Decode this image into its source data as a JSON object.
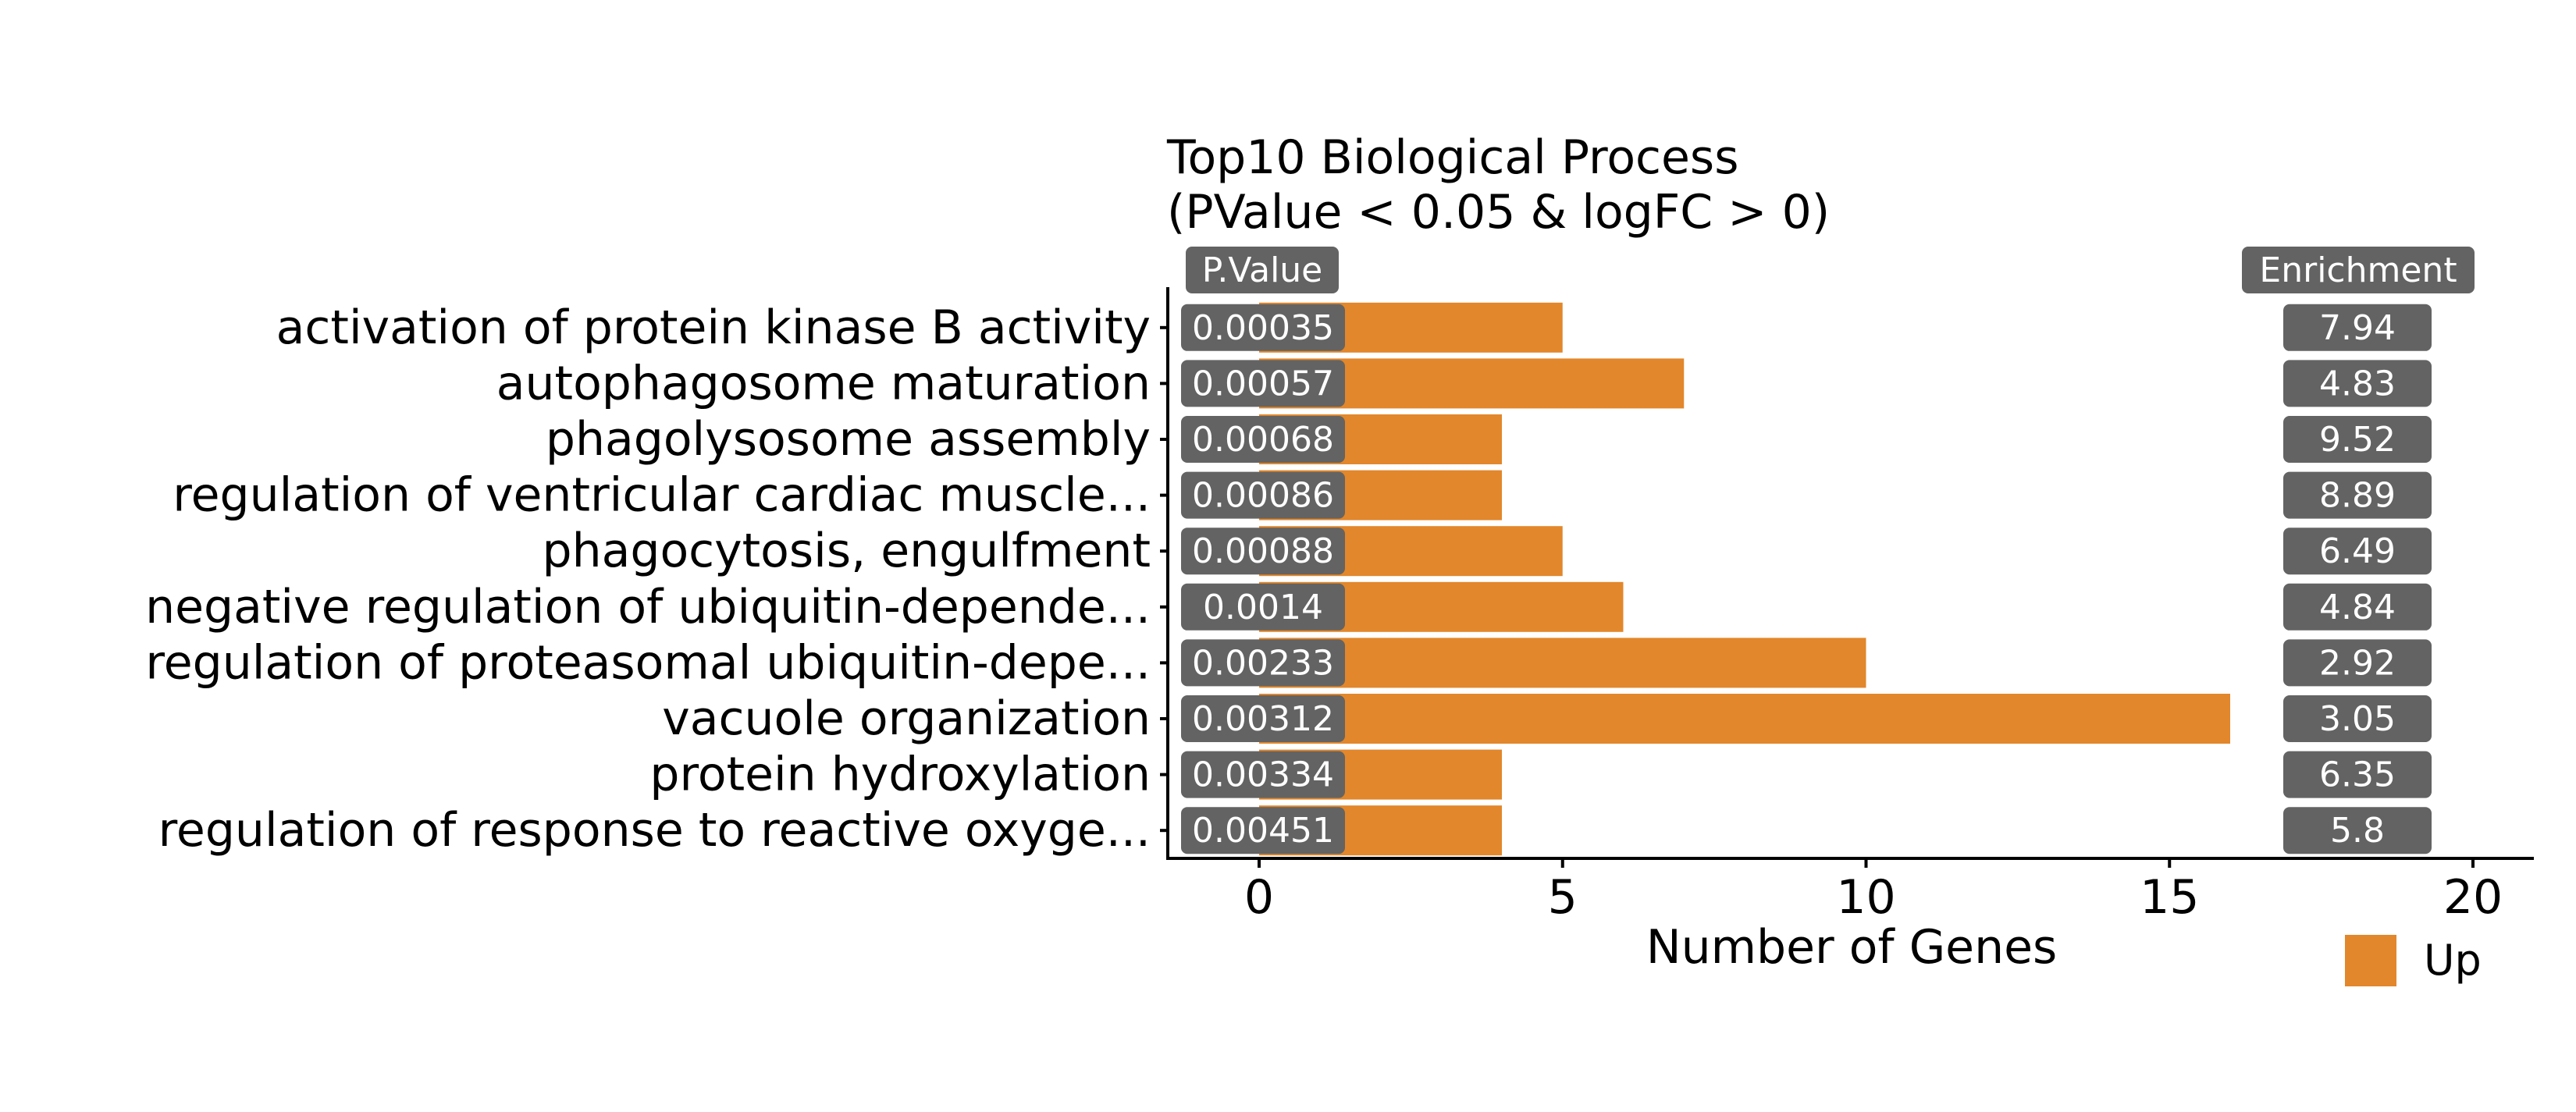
{
  "chart_data": {
    "type": "bar",
    "orientation": "horizontal",
    "title": "Top10 Biological Process",
    "subtitle": "(PValue < 0.05 & logFC > 0)",
    "xlabel": "Number of Genes",
    "ylabel": "",
    "xlim": [
      -1.5,
      21
    ],
    "xticks": [
      0,
      5,
      10,
      15,
      20
    ],
    "grid": false,
    "legend_position": "bottom-right",
    "categories": [
      "activation of protein kinase B activity",
      "autophagosome maturation",
      "phagolysosome assembly",
      "regulation of ventricular cardiac muscle...",
      "phagocytosis, engulfment",
      "negative regulation of ubiquitin-depende...",
      "regulation of proteasomal ubiquitin-depe...",
      "vacuole organization",
      "protein hydroxylation",
      "regulation of response to reactive oxyge..."
    ],
    "series": [
      {
        "name": "Up",
        "color": "#e2872b",
        "values": [
          5,
          7,
          4,
          4,
          5,
          6,
          10,
          16,
          4,
          4
        ]
      }
    ],
    "pvalue_header": "P.Value",
    "pvalues": [
      "0.00035",
      "0.00057",
      "0.00068",
      "0.00086",
      "0.00088",
      "0.0014",
      "0.00233",
      "0.00312",
      "0.00334",
      "0.00451"
    ],
    "enrichment_header": "Enrichment",
    "enrichment": [
      "7.94",
      "4.83",
      "9.52",
      "8.89",
      "6.49",
      "4.84",
      "2.92",
      "3.05",
      "6.35",
      "5.8"
    ],
    "label_box_color": "#636363"
  }
}
